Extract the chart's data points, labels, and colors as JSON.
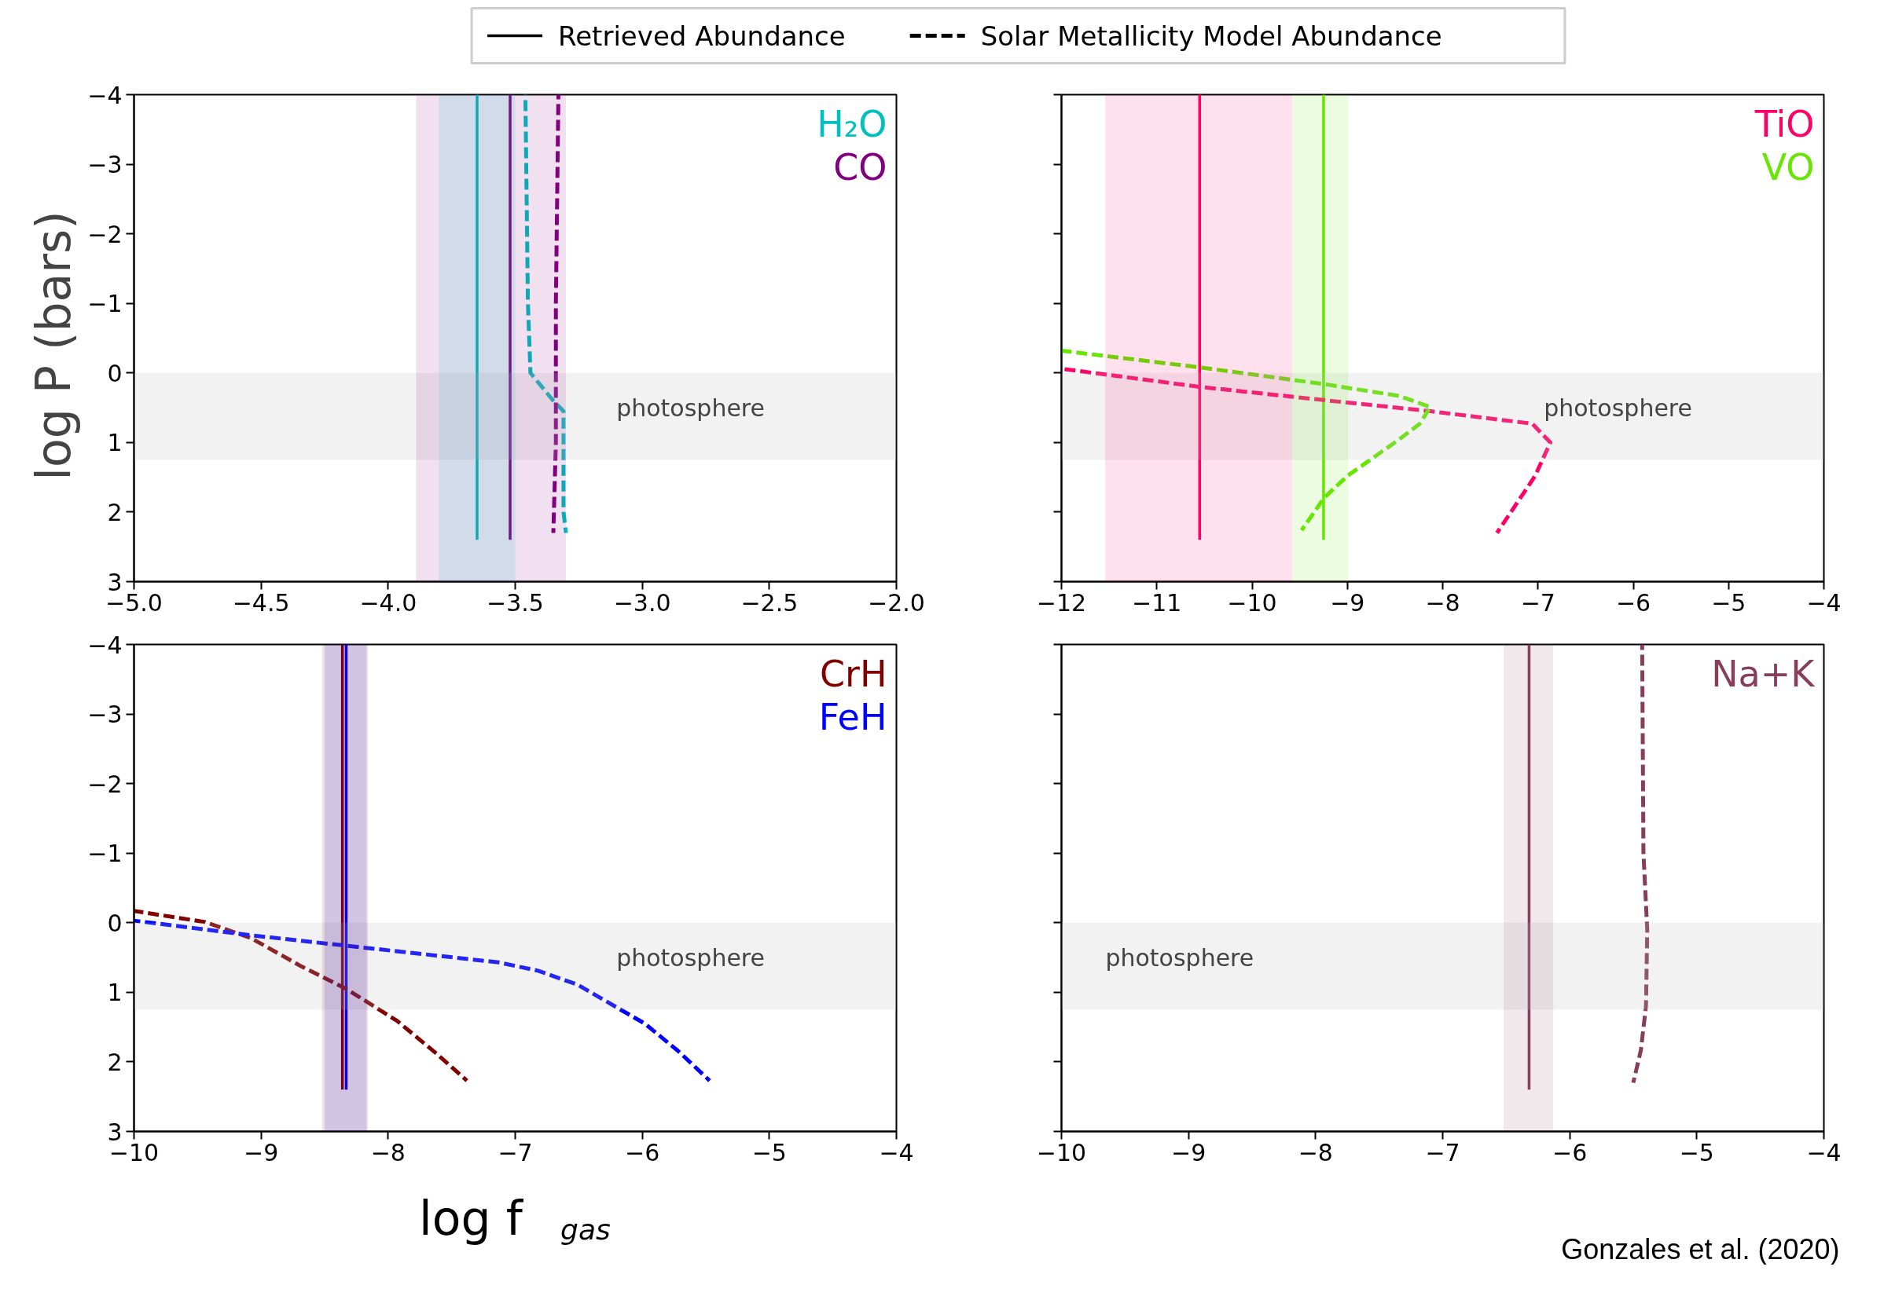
{
  "chart_data": [
    {
      "type": "line",
      "ylabel": "log P  (bars)",
      "xlim": [
        -5,
        -2
      ],
      "ylim": [
        3,
        -4
      ],
      "xticks": [
        {
          "value": -5,
          "label": "−5.0"
        },
        {
          "value": -4.5,
          "label": "−4.5"
        },
        {
          "value": -4,
          "label": "−4.0"
        },
        {
          "value": -3.5,
          "label": "−3.5"
        },
        {
          "value": -3,
          "label": "−3.0"
        },
        {
          "value": -2.5,
          "label": "−2.5"
        },
        {
          "value": -2,
          "label": "−2.0"
        }
      ],
      "yticks": [
        {
          "value": -4,
          "label": "−4"
        },
        {
          "value": -3,
          "label": "−3"
        },
        {
          "value": -2,
          "label": "−2"
        },
        {
          "value": -1,
          "label": "−1"
        },
        0,
        1,
        2,
        3
      ],
      "series": [
        {
          "name": "H₂O",
          "color": "#00bfbf",
          "line_style": "solid",
          "x": [
            -3.65,
            -3.65
          ],
          "values": [
            -4,
            2.4
          ]
        },
        {
          "name": "CO",
          "color": "#800080",
          "line_style": "solid",
          "x": [
            -3.52,
            -3.52
          ],
          "values": [
            -4,
            2.4
          ]
        },
        {
          "color": "#00bfbf",
          "line_style": "dashed",
          "x": [
            -3.46,
            -3.45,
            -3.44,
            -3.35,
            -3.31,
            -3.31,
            -3.3
          ],
          "values": [
            -4,
            -1,
            0,
            0.4,
            0.55,
            2.0,
            2.3
          ]
        },
        {
          "color": "#800080",
          "line_style": "dashed",
          "x": [
            -3.33,
            -3.34,
            -3.34,
            -3.35
          ],
          "values": [
            -4,
            -1,
            1,
            2.3
          ]
        }
      ],
      "bands": [
        {
          "axis": "y",
          "from": 0,
          "to": 1.25,
          "color": "#bfbfbf",
          "label": "photosphere"
        },
        {
          "axis": "x",
          "from": -3.89,
          "to": -3.3,
          "color": "#800080"
        },
        {
          "axis": "x",
          "from": -3.8,
          "to": -3.5,
          "color": "#00bfbf"
        }
      ],
      "annotations": [
        "Retrieved Abundance",
        "Solar Metallicity Model Abundance"
      ]
    },
    {
      "type": "line",
      "tick_labels": "x",
      "xlim": [
        -12,
        -4
      ],
      "ylim": [
        3,
        -4
      ],
      "xticks": [
        {
          "value": -12,
          "label": "−12"
        },
        {
          "value": -11,
          "label": "−11"
        },
        {
          "value": -10,
          "label": "−10"
        },
        {
          "value": -9,
          "label": "−9"
        },
        {
          "value": -8,
          "label": "−8"
        },
        {
          "value": -7,
          "label": "−7"
        },
        {
          "value": -6,
          "label": "−6"
        },
        {
          "value": -5,
          "label": "−5"
        },
        {
          "value": -4,
          "label": "−4"
        }
      ],
      "yticks": [
        -4,
        -3,
        -2,
        -1,
        0,
        1,
        2,
        3
      ],
      "series": [
        {
          "name": "TiO",
          "color": "#ff0066",
          "line_style": "solid",
          "x": [
            -10.55,
            -10.55
          ],
          "values": [
            -4,
            2.4
          ]
        },
        {
          "name": "VO",
          "color": "#66e600",
          "line_style": "solid",
          "x": [
            -9.25,
            -9.25
          ],
          "values": [
            -4,
            2.4
          ]
        },
        {
          "color": "#ff0066",
          "line_style": "dashed",
          "x": [
            -12,
            -10.55,
            -9.25,
            -8.13,
            -7.06,
            -6.87,
            -7.03,
            -7.43
          ],
          "values": [
            -0.06,
            0.2,
            0.39,
            0.55,
            0.73,
            1.0,
            1.48,
            2.3
          ]
        },
        {
          "color": "#66e600",
          "line_style": "dashed",
          "x": [
            -12,
            -10.55,
            -9.25,
            -8.46,
            -8.13,
            -8.24,
            -8.46,
            -9.0,
            -9.24,
            -9.48
          ],
          "values": [
            -0.32,
            -0.08,
            0.16,
            0.33,
            0.49,
            0.73,
            0.96,
            1.48,
            1.79,
            2.26
          ]
        }
      ],
      "bands": [
        {
          "axis": "y",
          "from": 0,
          "to": 1.25,
          "color": "#bfbfbf",
          "label": "photosphere"
        },
        {
          "axis": "x",
          "from": -11.54,
          "to": -9.58,
          "color": "#ff0066"
        },
        {
          "axis": "x",
          "from": -9.58,
          "to": -8.99,
          "color": "#66e600"
        }
      ]
    },
    {
      "type": "line",
      "xlabel": "log f$_{gas}$",
      "xlim": [
        -10,
        -4
      ],
      "ylim": [
        3,
        -4
      ],
      "xticks": [
        {
          "value": -10,
          "label": "−10"
        },
        {
          "value": -9,
          "label": "−9"
        },
        {
          "value": -8,
          "label": "−8"
        },
        {
          "value": -7,
          "label": "−7"
        },
        {
          "value": -6,
          "label": "−6"
        },
        {
          "value": -5,
          "label": "−5"
        },
        {
          "value": -4,
          "label": "−4"
        }
      ],
      "yticks": [
        {
          "value": -4,
          "label": "−4"
        },
        {
          "value": -3,
          "label": "−3"
        },
        {
          "value": -2,
          "label": "−2"
        },
        {
          "value": -1,
          "label": "−1"
        },
        0,
        1,
        2,
        3
      ],
      "series": [
        {
          "name": "CrH",
          "color": "#800000",
          "line_style": "solid",
          "x": [
            -8.36,
            -8.36
          ],
          "values": [
            -4,
            2.4
          ]
        },
        {
          "name": "FeH",
          "color": "#0000ff",
          "line_style": "solid",
          "x": [
            -8.33,
            -8.33
          ],
          "values": [
            -4,
            2.4
          ]
        },
        {
          "color": "#800000",
          "line_style": "dashed",
          "x": [
            -10,
            -9.44,
            -9.08,
            -8.68,
            -8.33,
            -7.93,
            -7.62,
            -7.38
          ],
          "values": [
            -0.17,
            -0.01,
            0.22,
            0.63,
            0.95,
            1.41,
            1.88,
            2.27
          ]
        },
        {
          "color": "#0000ff",
          "line_style": "dashed",
          "x": [
            -10,
            -9.08,
            -8.33,
            -7.13,
            -6.82,
            -6.51,
            -5.98,
            -5.72,
            -5.47
          ],
          "values": [
            -0.03,
            0.18,
            0.33,
            0.57,
            0.69,
            0.89,
            1.45,
            1.84,
            2.27
          ]
        }
      ],
      "bands": [
        {
          "axis": "y",
          "from": 0,
          "to": 1.25,
          "color": "#bfbfbf",
          "label": "photosphere"
        },
        {
          "axis": "x",
          "from": -8.52,
          "to": -8.16,
          "color": "#800000"
        },
        {
          "axis": "x",
          "from": -8.5,
          "to": -8.17,
          "color": "#0000ff"
        }
      ]
    },
    {
      "type": "line",
      "tick_labels": "x",
      "xlim": [
        -10,
        -4
      ],
      "ylim": [
        3,
        -4
      ],
      "xticks": [
        {
          "value": -10,
          "label": "−10"
        },
        {
          "value": -9,
          "label": "−9"
        },
        {
          "value": -8,
          "label": "−8"
        },
        {
          "value": -7,
          "label": "−7"
        },
        {
          "value": -6,
          "label": "−6"
        },
        {
          "value": -5,
          "label": "−5"
        },
        {
          "value": -4,
          "label": "−4"
        }
      ],
      "yticks": [
        -4,
        -3,
        -2,
        -1,
        0,
        1,
        2,
        3
      ],
      "series": [
        {
          "name": "Na+K",
          "color": "#873e5c",
          "line_style": "solid",
          "x": [
            -6.32,
            -6.32
          ],
          "values": [
            -4,
            2.4
          ]
        },
        {
          "color": "#873e5c",
          "line_style": "dashed",
          "x": [
            -5.43,
            -5.42,
            -5.39,
            -5.4,
            -5.44,
            -5.5
          ],
          "values": [
            -4,
            -1,
            0.1,
            1.2,
            1.83,
            2.3
          ]
        }
      ],
      "bands": [
        {
          "axis": "y",
          "from": 0,
          "to": 1.25,
          "color": "#bfbfbf",
          "label": "photosphere"
        },
        {
          "axis": "x",
          "from": -6.52,
          "to": -6.13,
          "color": "#873e5c"
        }
      ],
      "annotations": [
        "Gonzales et al. (2020)"
      ]
    }
  ]
}
